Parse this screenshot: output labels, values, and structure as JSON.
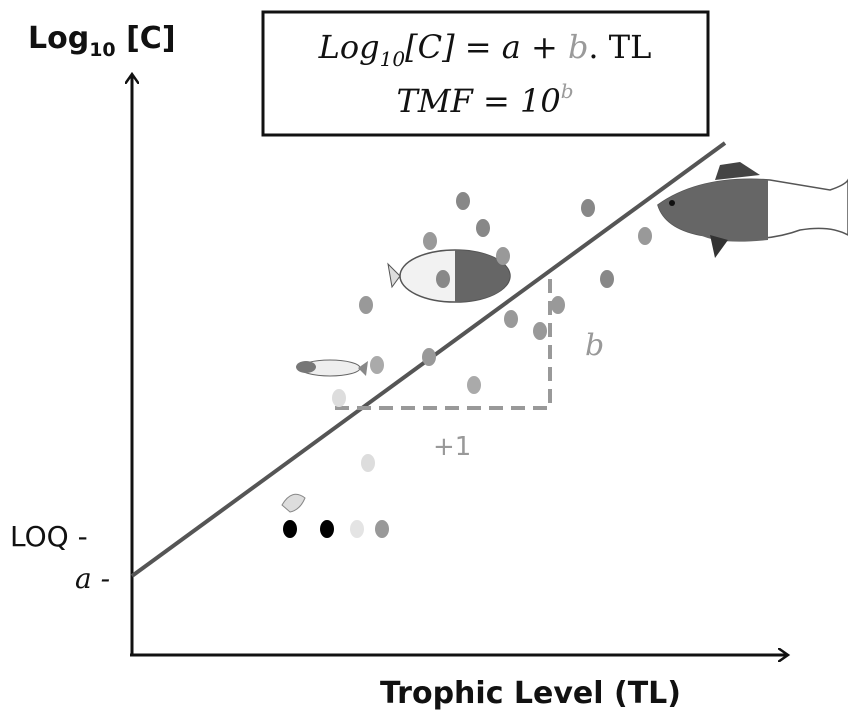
{
  "y_axis_label": {
    "main": "Log",
    "sub": "10",
    "tail": " [C]"
  },
  "formula": {
    "line1": [
      "Log",
      "10",
      "[C] = a + ",
      "b",
      ". TL"
    ],
    "line2": [
      "TMF = 10",
      "b"
    ]
  },
  "loq_label": "LOQ -",
  "intercept_label": "a -",
  "slope_label": "b",
  "step_label": "+1",
  "x_axis_label": "Trophic Level (TL)"
}
